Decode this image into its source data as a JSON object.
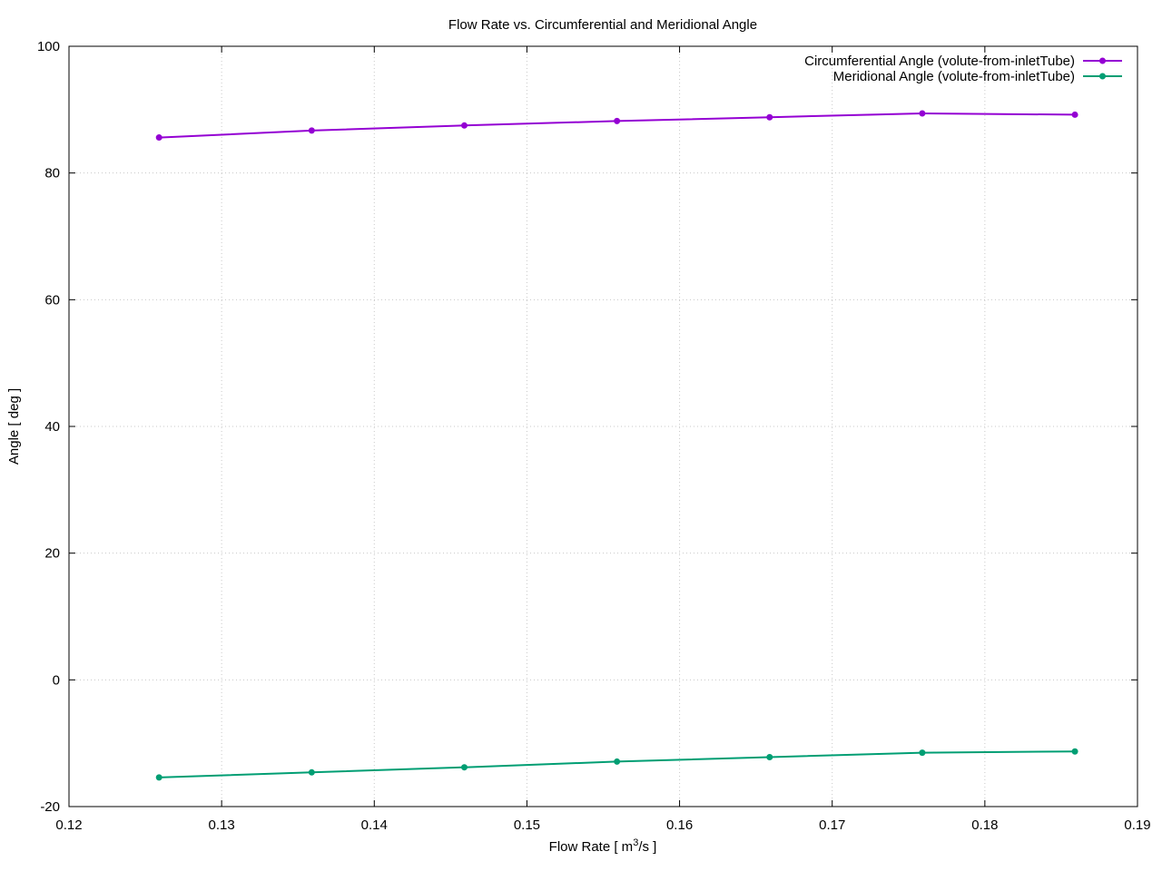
{
  "chart_data": {
    "type": "line",
    "title": "Flow Rate vs. Circumferential and Meridional Angle",
    "xlabel": "Flow Rate [ m",
    "xlabel_sup": "3",
    "xlabel_suffix": "/s ]",
    "ylabel": "Angle [ deg ]",
    "xlim": [
      0.12,
      0.19
    ],
    "ylim": [
      -20,
      100
    ],
    "xticks": [
      0.12,
      0.13,
      0.14,
      0.15,
      0.16,
      0.17,
      0.18,
      0.19
    ],
    "xtick_labels": [
      "0.12",
      "0.13",
      "0.14",
      "0.15",
      "0.16",
      "0.17",
      "0.18",
      "0.19"
    ],
    "yticks": [
      -20,
      0,
      20,
      40,
      60,
      80,
      100
    ],
    "ytick_labels": [
      "-20",
      "0",
      "20",
      "40",
      "60",
      "80",
      "100"
    ],
    "grid": true,
    "legend_position": "top-right",
    "x": [
      0.1259,
      0.1359,
      0.1459,
      0.1559,
      0.1659,
      0.1759,
      0.1859
    ],
    "series": [
      {
        "name": "Circumferential Angle (volute-from-inletTube)",
        "color": "#9400d3",
        "values": [
          85.6,
          86.7,
          87.5,
          88.2,
          88.8,
          89.4,
          89.2
        ]
      },
      {
        "name": "Meridional Angle (volute-from-inletTube)",
        "color": "#009e73",
        "values": [
          -15.4,
          -14.6,
          -13.8,
          -12.9,
          -12.2,
          -11.5,
          -11.3
        ]
      }
    ]
  }
}
